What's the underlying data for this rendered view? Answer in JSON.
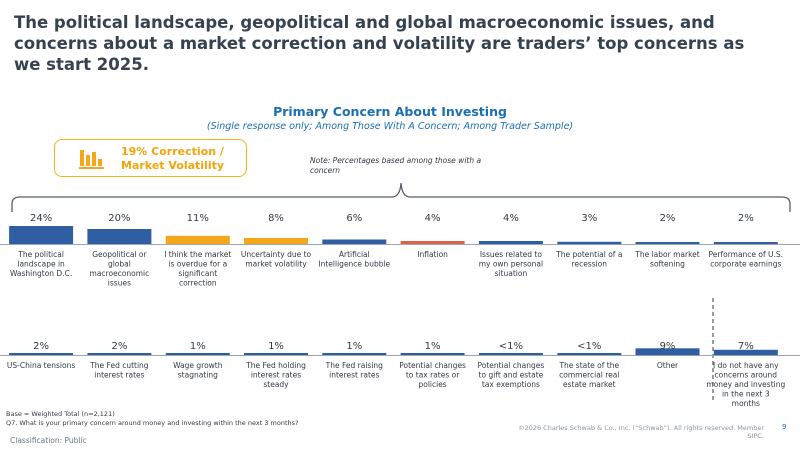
{
  "slide": {
    "headline": "The political landscape, geopolitical and global macroeconomic issues, and concerns about a market correction and volatility are traders’ top concerns as we start 2025.",
    "subtitle": "Primary Concern About Investing",
    "subsubtitle": "(Single response only; Among Those With A Concern; Among Trader Sample)",
    "callout_line1": "19% Correction /",
    "callout_line2": "Market Volatility",
    "callout_icon": "bar-chart-icon",
    "note": "Note: Percentages based among those with a concern",
    "base_line1": "Base = Weighted Total (n=2,121)",
    "base_line2": "Q7. What is your primary concern around money and investing within the next 3 months?",
    "copyright": "©2026 Charles Schwab & Co., Inc. (“Schwab”). All rights reserved. Member SIPC.",
    "page_number": "9",
    "classification": "Classification: Public"
  },
  "colors": {
    "blue": "#2f5ea3",
    "yellow": "#f2a81a",
    "red": "#d9634f",
    "title": "#36424f",
    "accent_blue": "#1b6fb3",
    "brace": "#555e69"
  },
  "chart_data": {
    "type": "bar",
    "title": "Primary Concern About Investing",
    "ylim": [
      0,
      24
    ],
    "rows": [
      {
        "categories": [
          "The political landscape in Washington D.C.",
          "Geopolitical or global macroeconomic issues",
          "I think the market is overdue for a significant correction",
          "Uncertainty due to market volatility",
          "Artificial Intelligence bubble",
          "Inflation",
          "Issues related to my own personal situation",
          "The potential of a recession",
          "The labor market softening",
          "Performance of U.S. corporate earnings"
        ],
        "values": [
          24,
          20,
          11,
          8,
          6,
          4,
          4,
          3,
          2,
          2
        ],
        "labels": [
          "24%",
          "20%",
          "11%",
          "8%",
          "6%",
          "4%",
          "4%",
          "3%",
          "2%",
          "2%"
        ],
        "colors": [
          "blue",
          "blue",
          "yellow",
          "yellow",
          "blue",
          "red",
          "blue",
          "blue",
          "blue",
          "blue"
        ]
      },
      {
        "categories": [
          "US-China tensions",
          "The Fed cutting interest rates",
          "Wage growth stagnating",
          "The Fed holding interest rates steady",
          "The Fed raising interest rates",
          "Potential changes to tax rates or policies",
          "Potential changes to gift and estate tax exemptions",
          "The state of the commercial real estate market",
          "Other",
          "I do not have any concerns around money and investing in the next 3 months"
        ],
        "values": [
          2,
          2,
          1,
          1,
          1,
          1,
          0.5,
          0.5,
          9,
          7
        ],
        "labels": [
          "2%",
          "2%",
          "1%",
          "1%",
          "1%",
          "1%",
          "<1%",
          "<1%",
          "9%",
          "7%"
        ],
        "colors": [
          "blue",
          "blue",
          "blue",
          "blue",
          "blue",
          "blue",
          "blue",
          "blue",
          "blue",
          "blue"
        ]
      }
    ]
  }
}
